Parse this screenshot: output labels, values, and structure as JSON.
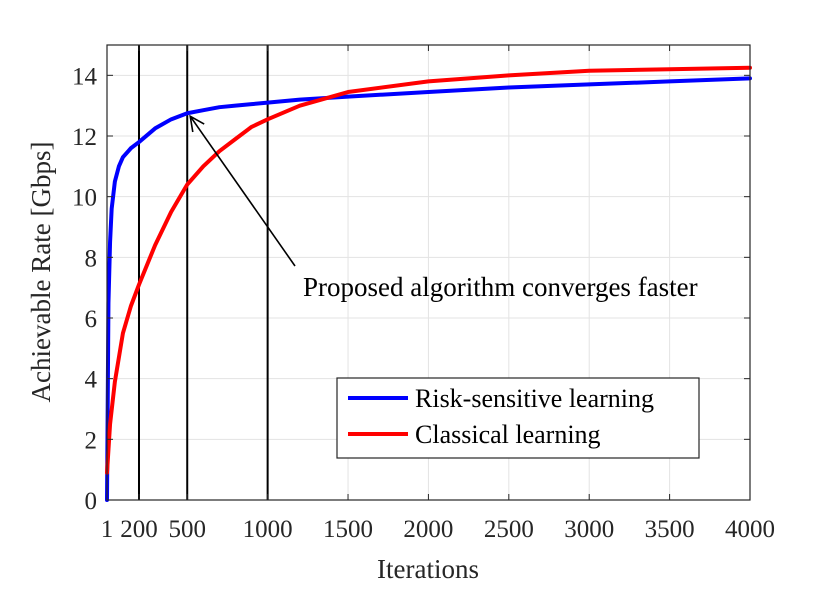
{
  "chart_data": {
    "type": "line",
    "title": "",
    "xlabel": "Iterations",
    "ylabel": "Achievable Rate [Gbps]",
    "xlim": [
      1,
      4000
    ],
    "ylim": [
      0,
      15
    ],
    "grid": true,
    "x_ticks": [
      1,
      200,
      500,
      1000,
      1500,
      2000,
      2500,
      3000,
      3500,
      4000
    ],
    "x_tick_labels": [
      "1",
      "200",
      "500",
      "1000",
      "1500",
      "2000",
      "2500",
      "3000",
      "3500",
      "4000"
    ],
    "y_ticks": [
      0,
      2,
      4,
      6,
      8,
      10,
      12,
      14
    ],
    "y_tick_labels": [
      "0",
      "2",
      "4",
      "6",
      "8",
      "10",
      "12",
      "14"
    ],
    "legend_position": "lower-right",
    "series": [
      {
        "name": "Risk-sensitive learning",
        "color": "#0000ff",
        "x": [
          1,
          10,
          20,
          30,
          50,
          75,
          100,
          150,
          200,
          300,
          400,
          500,
          600,
          700,
          800,
          900,
          1000,
          1200,
          1500,
          2000,
          2500,
          3000,
          3500,
          4000
        ],
        "y": [
          0,
          6.5,
          8.5,
          9.6,
          10.5,
          11.0,
          11.3,
          11.6,
          11.8,
          12.25,
          12.55,
          12.75,
          12.85,
          12.95,
          13.0,
          13.05,
          13.1,
          13.2,
          13.3,
          13.45,
          13.6,
          13.7,
          13.8,
          13.9
        ]
      },
      {
        "name": "Classical learning",
        "color": "#ff0000",
        "x": [
          1,
          20,
          50,
          100,
          150,
          200,
          300,
          400,
          500,
          600,
          700,
          800,
          900,
          1000,
          1200,
          1500,
          2000,
          2500,
          3000,
          3500,
          4000
        ],
        "y": [
          0.9,
          2.5,
          3.9,
          5.5,
          6.4,
          7.1,
          8.4,
          9.5,
          10.4,
          11.0,
          11.5,
          11.9,
          12.3,
          12.55,
          13.0,
          13.45,
          13.8,
          14.0,
          14.15,
          14.2,
          14.25
        ]
      }
    ],
    "vertical_lines": [
      200,
      500,
      1000
    ],
    "annotation": {
      "text": "Proposed algorithm converges faster",
      "arrow_to": [
        500,
        12.75
      ]
    }
  }
}
